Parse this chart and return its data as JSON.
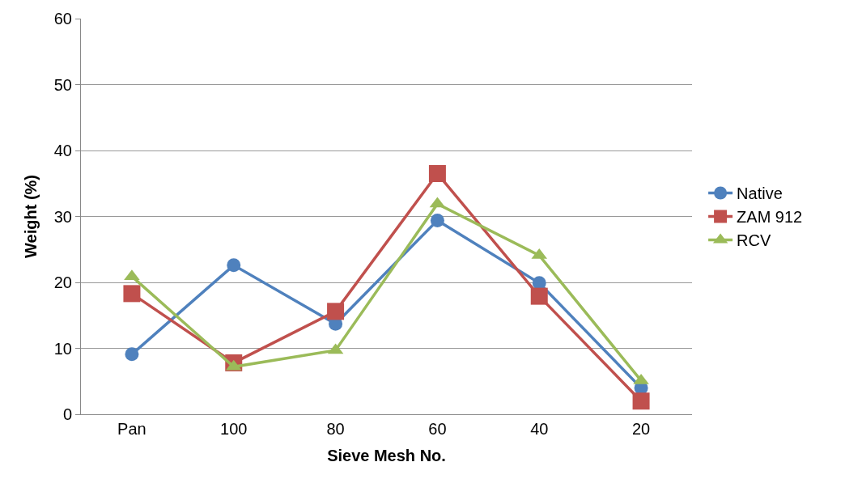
{
  "chart_data": {
    "type": "line",
    "xlabel": "Sieve Mesh No.",
    "ylabel": "Weight (%)",
    "categories": [
      "Pan",
      "100",
      "80",
      "60",
      "40",
      "20"
    ],
    "series": [
      {
        "name": "Native",
        "color": "#4f81bd",
        "marker": "circle",
        "values": [
          9.1,
          22.6,
          13.7,
          29.4,
          19.9,
          4.0
        ]
      },
      {
        "name": "ZAM 912",
        "color": "#c0504d",
        "marker": "square",
        "values": [
          18.3,
          7.8,
          15.6,
          36.5,
          17.9,
          2.0
        ]
      },
      {
        "name": "RCV",
        "color": "#9bbb59",
        "marker": "triangle",
        "values": [
          20.9,
          7.2,
          9.7,
          31.9,
          24.1,
          5.1
        ]
      }
    ],
    "ylim": [
      0,
      60
    ],
    "yticks": [
      0,
      10,
      20,
      30,
      40,
      50,
      60
    ],
    "grid": "y",
    "legend": "right",
    "line_style": "solid"
  }
}
